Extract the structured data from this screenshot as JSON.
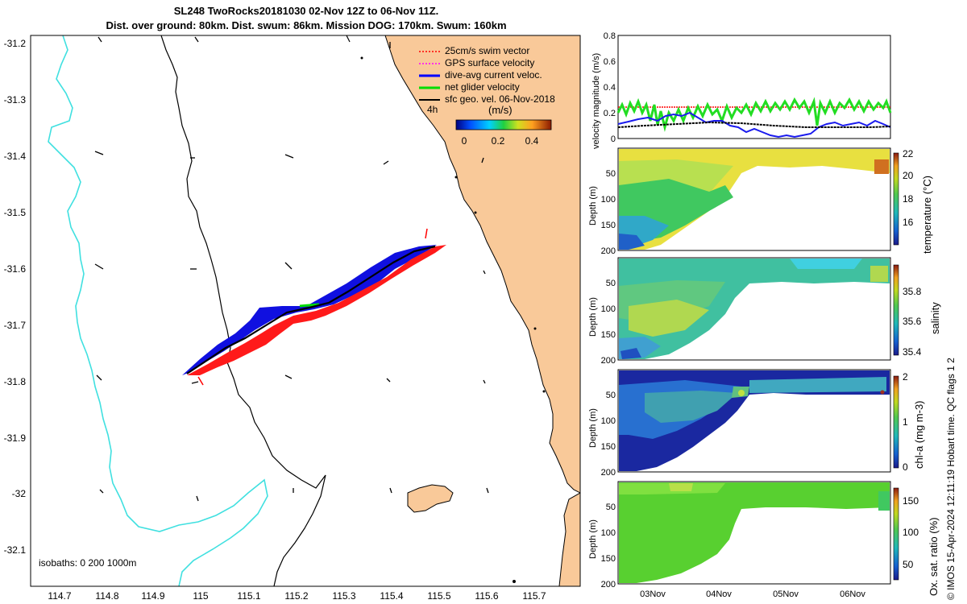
{
  "header": {
    "title_line1": "SL248 TwoRocks20181030 02-Nov 12Z to 06-Nov 11Z.",
    "title_line2": "Dist. over ground: 80km. Dist. swum: 86km. Mission DOG: 170km. Swum: 160km"
  },
  "map": {
    "legend": [
      {
        "label": "25cm/s swim vector",
        "color": "#ff0000"
      },
      {
        "label": "GPS surface velocity",
        "color": "#ff00ff"
      },
      {
        "label": "dive-avg current veloc.",
        "color": "#0000ff"
      },
      {
        "label": "net glider velocity",
        "color": "#00dd00"
      },
      {
        "label": "sfc geo. vel. 06-Nov-2018",
        "color": "#000000"
      }
    ],
    "time_label": "4h",
    "colorbar": {
      "units": "(m/s)",
      "ticks": [
        "0",
        "0.2",
        "0.4"
      ]
    },
    "isobaths_label": "isobaths: 0   200   1000m",
    "lon_ticks": [
      "114.7",
      "114.8",
      "114.9",
      "115",
      "115.1",
      "115.2",
      "115.3",
      "115.4",
      "115.5",
      "115.6",
      "115.7"
    ],
    "lat_ticks": [
      "-31.2",
      "-31.3",
      "-31.4",
      "-31.5",
      "-31.6",
      "-31.7",
      "-31.8",
      "-31.9",
      "-32",
      "-32.1"
    ],
    "colors": {
      "land": "#f9c999",
      "coastline": "#000000",
      "isobath_200": "#000000",
      "isobath_1000": "#40e0e0"
    }
  },
  "panels": {
    "velocity": {
      "ylabel": "velocity magnitude (m/s)",
      "yticks": [
        "0",
        "0.2",
        "0.4",
        "0.6",
        "0.8"
      ]
    },
    "profiles": [
      {
        "ylabel": "Depth (m)",
        "cblabel": "temperature (°C)",
        "cbticks": [
          "16",
          "18",
          "20",
          "22"
        ],
        "yticks": [
          "50",
          "100",
          "150",
          "200"
        ]
      },
      {
        "ylabel": "Depth (m)",
        "cblabel": "salinity",
        "cbticks": [
          "35.4",
          "35.6",
          "35.8"
        ],
        "yticks": [
          "50",
          "100",
          "150",
          "200"
        ]
      },
      {
        "ylabel": "Depth (m)",
        "cblabel": "chl-a (mg m-3)",
        "cbticks": [
          "0",
          "1",
          "2"
        ],
        "yticks": [
          "50",
          "100",
          "150",
          "200"
        ]
      },
      {
        "ylabel": "Depth (m)",
        "cblabel": "Ox. sat. ratio (%)",
        "cbticks": [
          "50",
          "100",
          "150"
        ],
        "yticks": [
          "50",
          "100",
          "150",
          "200"
        ]
      }
    ],
    "xticks": [
      "03Nov",
      "04Nov",
      "05Nov",
      "06Nov"
    ]
  },
  "footer": {
    "qc_text": "© IMOS 15-Apr-2024 12:11:19 Hobart time. QC flags 1  2"
  },
  "chart_data": [
    {
      "type": "line",
      "title": "",
      "xlabel": "",
      "ylabel": "velocity magnitude (m/s)",
      "ylim": [
        0,
        0.8
      ],
      "x": [
        "03Nov",
        "04Nov",
        "05Nov",
        "06Nov"
      ],
      "series": [
        {
          "name": "25cm/s swim vector",
          "values": [
            0.25,
            0.25,
            0.25,
            0.25
          ]
        },
        {
          "name": "net glider velocity",
          "values": [
            0.25,
            0.22,
            0.25,
            0.27
          ]
        },
        {
          "name": "dive-avg current veloc.",
          "values": [
            0.12,
            0.15,
            0.02,
            0.13
          ]
        },
        {
          "name": "sfc geo. vel. 06-Nov-2018",
          "values": [
            0.09,
            0.11,
            0.1,
            0.09
          ]
        }
      ]
    },
    {
      "type": "heatmap",
      "ylabel": "Depth (m)",
      "colorbar_label": "temperature (°C)",
      "clim": [
        15,
        22
      ],
      "x": [
        "03Nov",
        "04Nov",
        "05Nov",
        "06Nov"
      ],
      "typical_values": {
        "surface": 20.5,
        "deep": 16.5
      }
    },
    {
      "type": "heatmap",
      "ylabel": "Depth (m)",
      "colorbar_label": "salinity",
      "clim": [
        35.3,
        35.95
      ],
      "x": [
        "03Nov",
        "04Nov",
        "05Nov",
        "06Nov"
      ],
      "typical_values": {
        "surface": 35.65,
        "deep": 35.55
      }
    },
    {
      "type": "heatmap",
      "ylabel": "Depth (m)",
      "colorbar_label": "chl-a (mg m-3)",
      "clim": [
        0,
        2
      ],
      "x": [
        "03Nov",
        "04Nov",
        "05Nov",
        "06Nov"
      ],
      "typical_values": {
        "surface": 0.2,
        "deep": 0.3
      }
    },
    {
      "type": "heatmap",
      "ylabel": "Depth (m)",
      "colorbar_label": "Ox. sat. ratio (%)",
      "clim": [
        20,
        175
      ],
      "x": [
        "03Nov",
        "04Nov",
        "05Nov",
        "06Nov"
      ],
      "typical_values": {
        "surface": 100,
        "deep": 100
      }
    }
  ]
}
